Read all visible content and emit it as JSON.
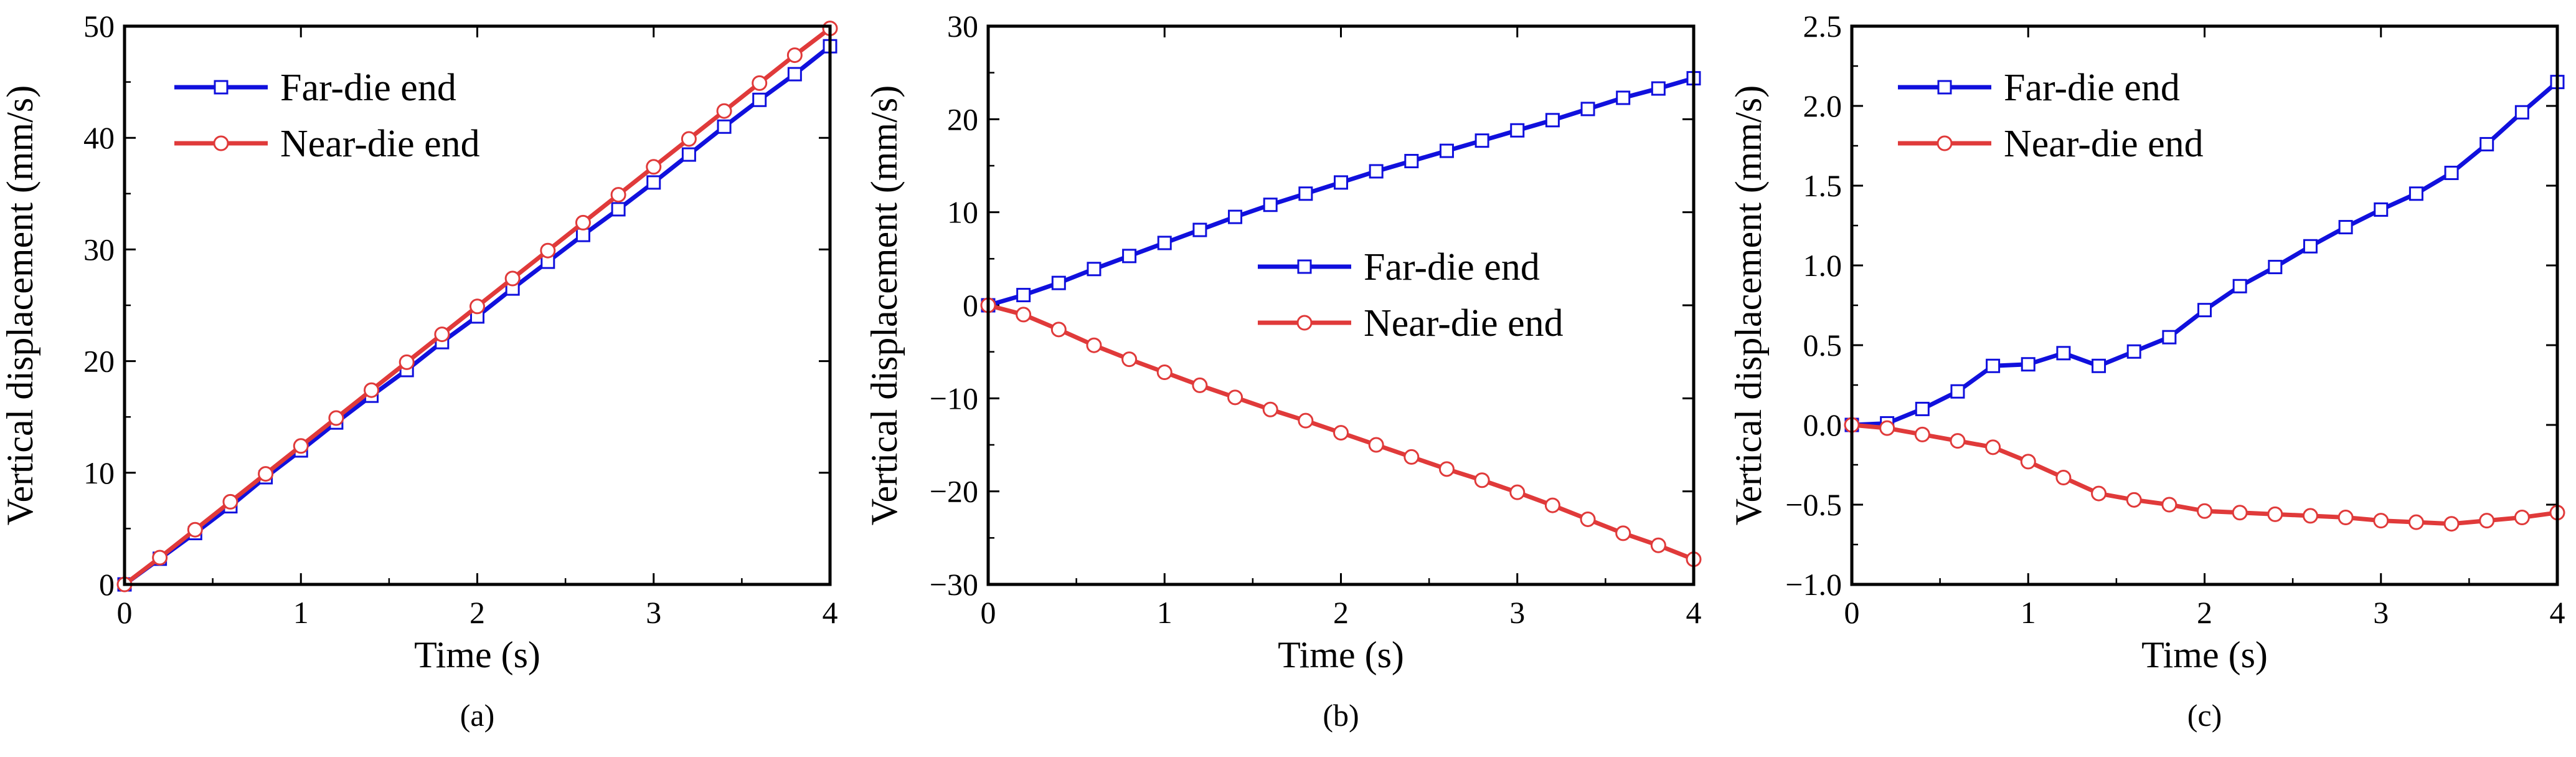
{
  "figure": {
    "colors": {
      "far": "#1010dd",
      "near": "#e03a3a",
      "axis": "#000000"
    }
  },
  "chart_data": [
    {
      "type": "line",
      "label": "(a)",
      "xlabel": "Time (s)",
      "ylabel": "Vertical displacement  (mm/s)",
      "xlim": [
        0,
        4
      ],
      "ylim": [
        0,
        50
      ],
      "xticks": [
        0,
        1,
        2,
        3,
        4
      ],
      "yticks": [
        0,
        10,
        20,
        30,
        40,
        50
      ],
      "legend": "top-left",
      "series": [
        {
          "name": "Far-die end",
          "marker": "square",
          "x": [
            0,
            0.2,
            0.4,
            0.6,
            0.8,
            1.0,
            1.2,
            1.4,
            1.6,
            1.8,
            2.0,
            2.2,
            2.4,
            2.6,
            2.8,
            3.0,
            3.2,
            3.4,
            3.6,
            3.8,
            4.0
          ],
          "y": [
            0,
            2.3,
            4.6,
            7.0,
            9.6,
            12.0,
            14.5,
            16.9,
            19.2,
            21.7,
            24.0,
            26.5,
            28.9,
            31.3,
            33.6,
            36.0,
            38.5,
            41.0,
            43.4,
            45.7,
            48.2
          ]
        },
        {
          "name": "Near-die end",
          "marker": "circle",
          "x": [
            0,
            0.2,
            0.4,
            0.6,
            0.8,
            1.0,
            1.2,
            1.4,
            1.6,
            1.8,
            2.0,
            2.2,
            2.4,
            2.6,
            2.8,
            3.0,
            3.2,
            3.4,
            3.6,
            3.8,
            4.0
          ],
          "y": [
            0,
            2.4,
            4.9,
            7.4,
            9.9,
            12.4,
            14.9,
            17.4,
            19.9,
            22.4,
            24.9,
            27.4,
            29.9,
            32.4,
            34.9,
            37.4,
            39.9,
            42.4,
            44.9,
            47.4,
            49.8
          ]
        }
      ]
    },
    {
      "type": "line",
      "label": "(b)",
      "xlabel": "Time (s)",
      "ylabel": "Vertical displacement  (mm/s)",
      "xlim": [
        0,
        4
      ],
      "ylim": [
        -30,
        30
      ],
      "xticks": [
        0,
        1,
        2,
        3,
        4
      ],
      "yticks": [
        -30,
        -20,
        -10,
        0,
        10,
        20,
        30
      ],
      "legend": "center",
      "series": [
        {
          "name": "Far-die end",
          "marker": "square",
          "x": [
            0,
            0.2,
            0.4,
            0.6,
            0.8,
            1.0,
            1.2,
            1.4,
            1.6,
            1.8,
            2.0,
            2.2,
            2.4,
            2.6,
            2.8,
            3.0,
            3.2,
            3.4,
            3.6,
            3.8,
            4.0
          ],
          "y": [
            0,
            1.1,
            2.4,
            3.9,
            5.3,
            6.7,
            8.1,
            9.5,
            10.8,
            12.0,
            13.2,
            14.4,
            15.5,
            16.6,
            17.7,
            18.8,
            19.9,
            21.1,
            22.3,
            23.3,
            24.4
          ]
        },
        {
          "name": "Near-die end",
          "marker": "circle",
          "x": [
            0,
            0.2,
            0.4,
            0.6,
            0.8,
            1.0,
            1.2,
            1.4,
            1.6,
            1.8,
            2.0,
            2.2,
            2.4,
            2.6,
            2.8,
            3.0,
            3.2,
            3.4,
            3.6,
            3.8,
            4.0
          ],
          "y": [
            0,
            -1.0,
            -2.6,
            -4.3,
            -5.8,
            -7.2,
            -8.6,
            -9.9,
            -11.2,
            -12.4,
            -13.7,
            -15.0,
            -16.3,
            -17.6,
            -18.8,
            -20.1,
            -21.5,
            -23.0,
            -24.5,
            -25.8,
            -27.3
          ]
        }
      ]
    },
    {
      "type": "line",
      "label": "(c)",
      "xlabel": "Time (s)",
      "ylabel": "Vertical displacement  (mm/s)",
      "xlim": [
        0,
        4
      ],
      "ylim": [
        -1.0,
        2.5
      ],
      "xticks": [
        0,
        1,
        2,
        3,
        4
      ],
      "yticks": [
        -1.0,
        -0.5,
        0.0,
        0.5,
        1.0,
        1.5,
        2.0,
        2.5
      ],
      "ytick_labels": [
        "−1.0",
        "−0.5",
        "0.0",
        "0.5",
        "1.0",
        "1.5",
        "2.0",
        "2.5"
      ],
      "legend": "top-left",
      "series": [
        {
          "name": "Far-die end",
          "marker": "square",
          "x": [
            0,
            0.2,
            0.4,
            0.6,
            0.8,
            1.0,
            1.2,
            1.4,
            1.6,
            1.8,
            2.0,
            2.2,
            2.4,
            2.6,
            2.8,
            3.0,
            3.2,
            3.4,
            3.6,
            3.8,
            4.0
          ],
          "y": [
            0.0,
            0.01,
            0.1,
            0.21,
            0.37,
            0.38,
            0.45,
            0.37,
            0.46,
            0.55,
            0.72,
            0.87,
            0.99,
            1.12,
            1.24,
            1.35,
            1.45,
            1.58,
            1.76,
            1.96,
            2.15
          ]
        },
        {
          "name": "Near-die end",
          "marker": "circle",
          "x": [
            0,
            0.2,
            0.4,
            0.6,
            0.8,
            1.0,
            1.2,
            1.4,
            1.6,
            1.8,
            2.0,
            2.2,
            2.4,
            2.6,
            2.8,
            3.0,
            3.2,
            3.4,
            3.6,
            3.8,
            4.0
          ],
          "y": [
            0.0,
            -0.02,
            -0.06,
            -0.1,
            -0.14,
            -0.23,
            -0.33,
            -0.43,
            -0.47,
            -0.5,
            -0.54,
            -0.55,
            -0.56,
            -0.57,
            -0.58,
            -0.6,
            -0.61,
            -0.62,
            -0.6,
            -0.58,
            -0.55
          ]
        }
      ]
    }
  ]
}
